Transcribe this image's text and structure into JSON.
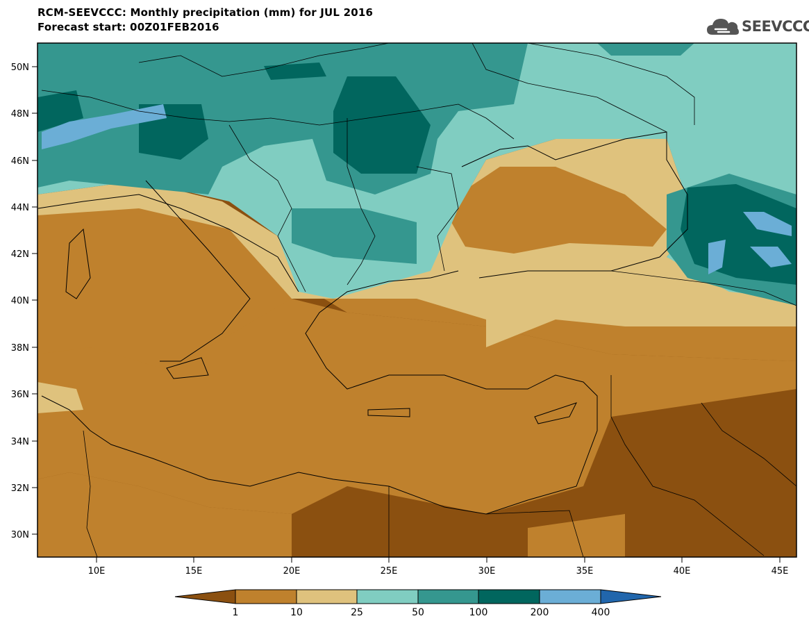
{
  "title": {
    "line1": "RCM-SEEVCCC: Monthly precipitation (mm) for JUL 2016",
    "line2": "Forecast start: 00Z01FEB2016"
  },
  "logo": {
    "text": "SEEVCCC",
    "icon": "cloud-icon"
  },
  "axes": {
    "lat_labels": [
      "50N",
      "48N",
      "46N",
      "44N",
      "42N",
      "40N",
      "38N",
      "36N",
      "34N",
      "32N",
      "30N"
    ],
    "lon_labels": [
      "10E",
      "15E",
      "20E",
      "25E",
      "30E",
      "35E",
      "40E",
      "45E"
    ]
  },
  "colorbar": {
    "labels": [
      "1",
      "10",
      "25",
      "50",
      "100",
      "200",
      "400"
    ],
    "colors": [
      "#8b5010",
      "#bf812d",
      "#dfc27d",
      "#80cdc1",
      "#35978f",
      "#01665e",
      "#6baed6",
      "#2166ac"
    ]
  }
}
